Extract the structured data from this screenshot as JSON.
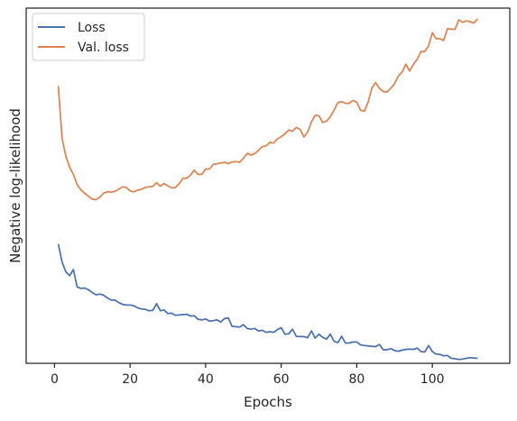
{
  "chart_data": {
    "type": "line",
    "xlabel": "Epochs",
    "ylabel": "Negative log-likelihood",
    "xlim": [
      -7.5,
      120.5
    ],
    "ylim": [
      0,
      1
    ],
    "y_ticks_shown": false,
    "x_ticks": [
      0,
      20,
      40,
      60,
      80,
      100
    ],
    "grid": false,
    "legend_position": "top-left",
    "series": [
      {
        "name": "Loss",
        "color": "#4c72b0",
        "x": [
          1,
          2,
          3,
          4,
          5,
          6,
          7,
          8,
          9,
          10,
          11,
          12,
          13,
          14,
          15,
          16,
          17,
          18,
          19,
          20,
          21,
          22,
          23,
          24,
          25,
          26,
          27,
          28,
          29,
          30,
          31,
          32,
          33,
          34,
          35,
          36,
          37,
          38,
          39,
          40,
          41,
          42,
          43,
          44,
          45,
          46,
          47,
          48,
          49,
          50,
          51,
          52,
          53,
          54,
          55,
          56,
          57,
          58,
          59,
          60,
          61,
          62,
          63,
          64,
          65,
          66,
          67,
          68,
          69,
          70,
          71,
          72,
          73,
          74,
          75,
          76,
          77,
          78,
          79,
          80,
          81,
          82,
          83,
          84,
          85,
          86,
          87,
          88,
          89,
          90,
          91,
          92,
          93,
          94,
          95,
          96,
          97,
          98,
          99,
          100,
          101,
          102,
          103,
          104,
          105,
          106,
          107,
          108,
          109,
          110,
          111,
          112
        ],
        "y": [
          0.336,
          0.285,
          0.257,
          0.247,
          0.264,
          0.215,
          0.211,
          0.212,
          0.207,
          0.199,
          0.193,
          0.195,
          0.192,
          0.184,
          0.178,
          0.178,
          0.171,
          0.166,
          0.164,
          0.164,
          0.162,
          0.156,
          0.153,
          0.152,
          0.148,
          0.149,
          0.168,
          0.148,
          0.15,
          0.14,
          0.141,
          0.135,
          0.136,
          0.137,
          0.138,
          0.133,
          0.134,
          0.124,
          0.122,
          0.125,
          0.119,
          0.12,
          0.122,
          0.116,
          0.126,
          0.128,
          0.104,
          0.103,
          0.102,
          0.109,
          0.098,
          0.096,
          0.098,
          0.091,
          0.093,
          0.087,
          0.089,
          0.087,
          0.095,
          0.1,
          0.082,
          0.083,
          0.096,
          0.076,
          0.075,
          0.075,
          0.072,
          0.091,
          0.071,
          0.082,
          0.073,
          0.068,
          0.082,
          0.062,
          0.058,
          0.076,
          0.057,
          0.057,
          0.06,
          0.06,
          0.052,
          0.05,
          0.049,
          0.048,
          0.047,
          0.053,
          0.038,
          0.038,
          0.041,
          0.036,
          0.034,
          0.037,
          0.039,
          0.04,
          0.039,
          0.043,
          0.033,
          0.032,
          0.05,
          0.033,
          0.026,
          0.025,
          0.021,
          0.022,
          0.014,
          0.013,
          0.011,
          0.012,
          0.014,
          0.016,
          0.015,
          0.014
        ]
      },
      {
        "name": "Val. loss",
        "color": "#dd8452",
        "x": [
          1,
          2,
          3,
          4,
          5,
          6,
          7,
          8,
          9,
          10,
          11,
          12,
          13,
          14,
          15,
          16,
          17,
          18,
          19,
          20,
          21,
          22,
          23,
          24,
          25,
          26,
          27,
          28,
          29,
          30,
          31,
          32,
          33,
          34,
          35,
          36,
          37,
          38,
          39,
          40,
          41,
          42,
          43,
          44,
          45,
          46,
          47,
          48,
          49,
          50,
          51,
          52,
          53,
          54,
          55,
          56,
          57,
          58,
          59,
          60,
          61,
          62,
          63,
          64,
          65,
          66,
          67,
          68,
          69,
          70,
          71,
          72,
          73,
          74,
          75,
          76,
          77,
          78,
          79,
          80,
          81,
          82,
          83,
          84,
          85,
          86,
          87,
          88,
          89,
          90,
          91,
          92,
          93,
          94,
          95,
          96,
          97,
          98,
          99,
          100,
          101,
          102,
          103,
          104,
          105,
          106,
          107,
          108,
          109,
          110,
          111,
          112
        ],
        "y": [
          0.781,
          0.633,
          0.583,
          0.552,
          0.532,
          0.503,
          0.488,
          0.479,
          0.47,
          0.462,
          0.461,
          0.468,
          0.479,
          0.483,
          0.482,
          0.484,
          0.49,
          0.497,
          0.495,
          0.485,
          0.483,
          0.487,
          0.49,
          0.495,
          0.497,
          0.498,
          0.508,
          0.499,
          0.506,
          0.5,
          0.494,
          0.495,
          0.506,
          0.521,
          0.521,
          0.53,
          0.544,
          0.532,
          0.532,
          0.547,
          0.547,
          0.56,
          0.562,
          0.564,
          0.566,
          0.562,
          0.567,
          0.568,
          0.566,
          0.577,
          0.591,
          0.586,
          0.59,
          0.6,
          0.61,
          0.612,
          0.622,
          0.62,
          0.632,
          0.638,
          0.646,
          0.657,
          0.653,
          0.664,
          0.659,
          0.637,
          0.651,
          0.68,
          0.698,
          0.697,
          0.678,
          0.682,
          0.694,
          0.713,
          0.734,
          0.737,
          0.732,
          0.732,
          0.74,
          0.735,
          0.713,
          0.71,
          0.735,
          0.776,
          0.79,
          0.774,
          0.765,
          0.764,
          0.774,
          0.787,
          0.809,
          0.82,
          0.842,
          0.823,
          0.842,
          0.856,
          0.878,
          0.878,
          0.894,
          0.931,
          0.914,
          0.914,
          0.909,
          0.942,
          0.941,
          0.94,
          0.967,
          0.96,
          0.964,
          0.962,
          0.958,
          0.97
        ]
      }
    ]
  }
}
